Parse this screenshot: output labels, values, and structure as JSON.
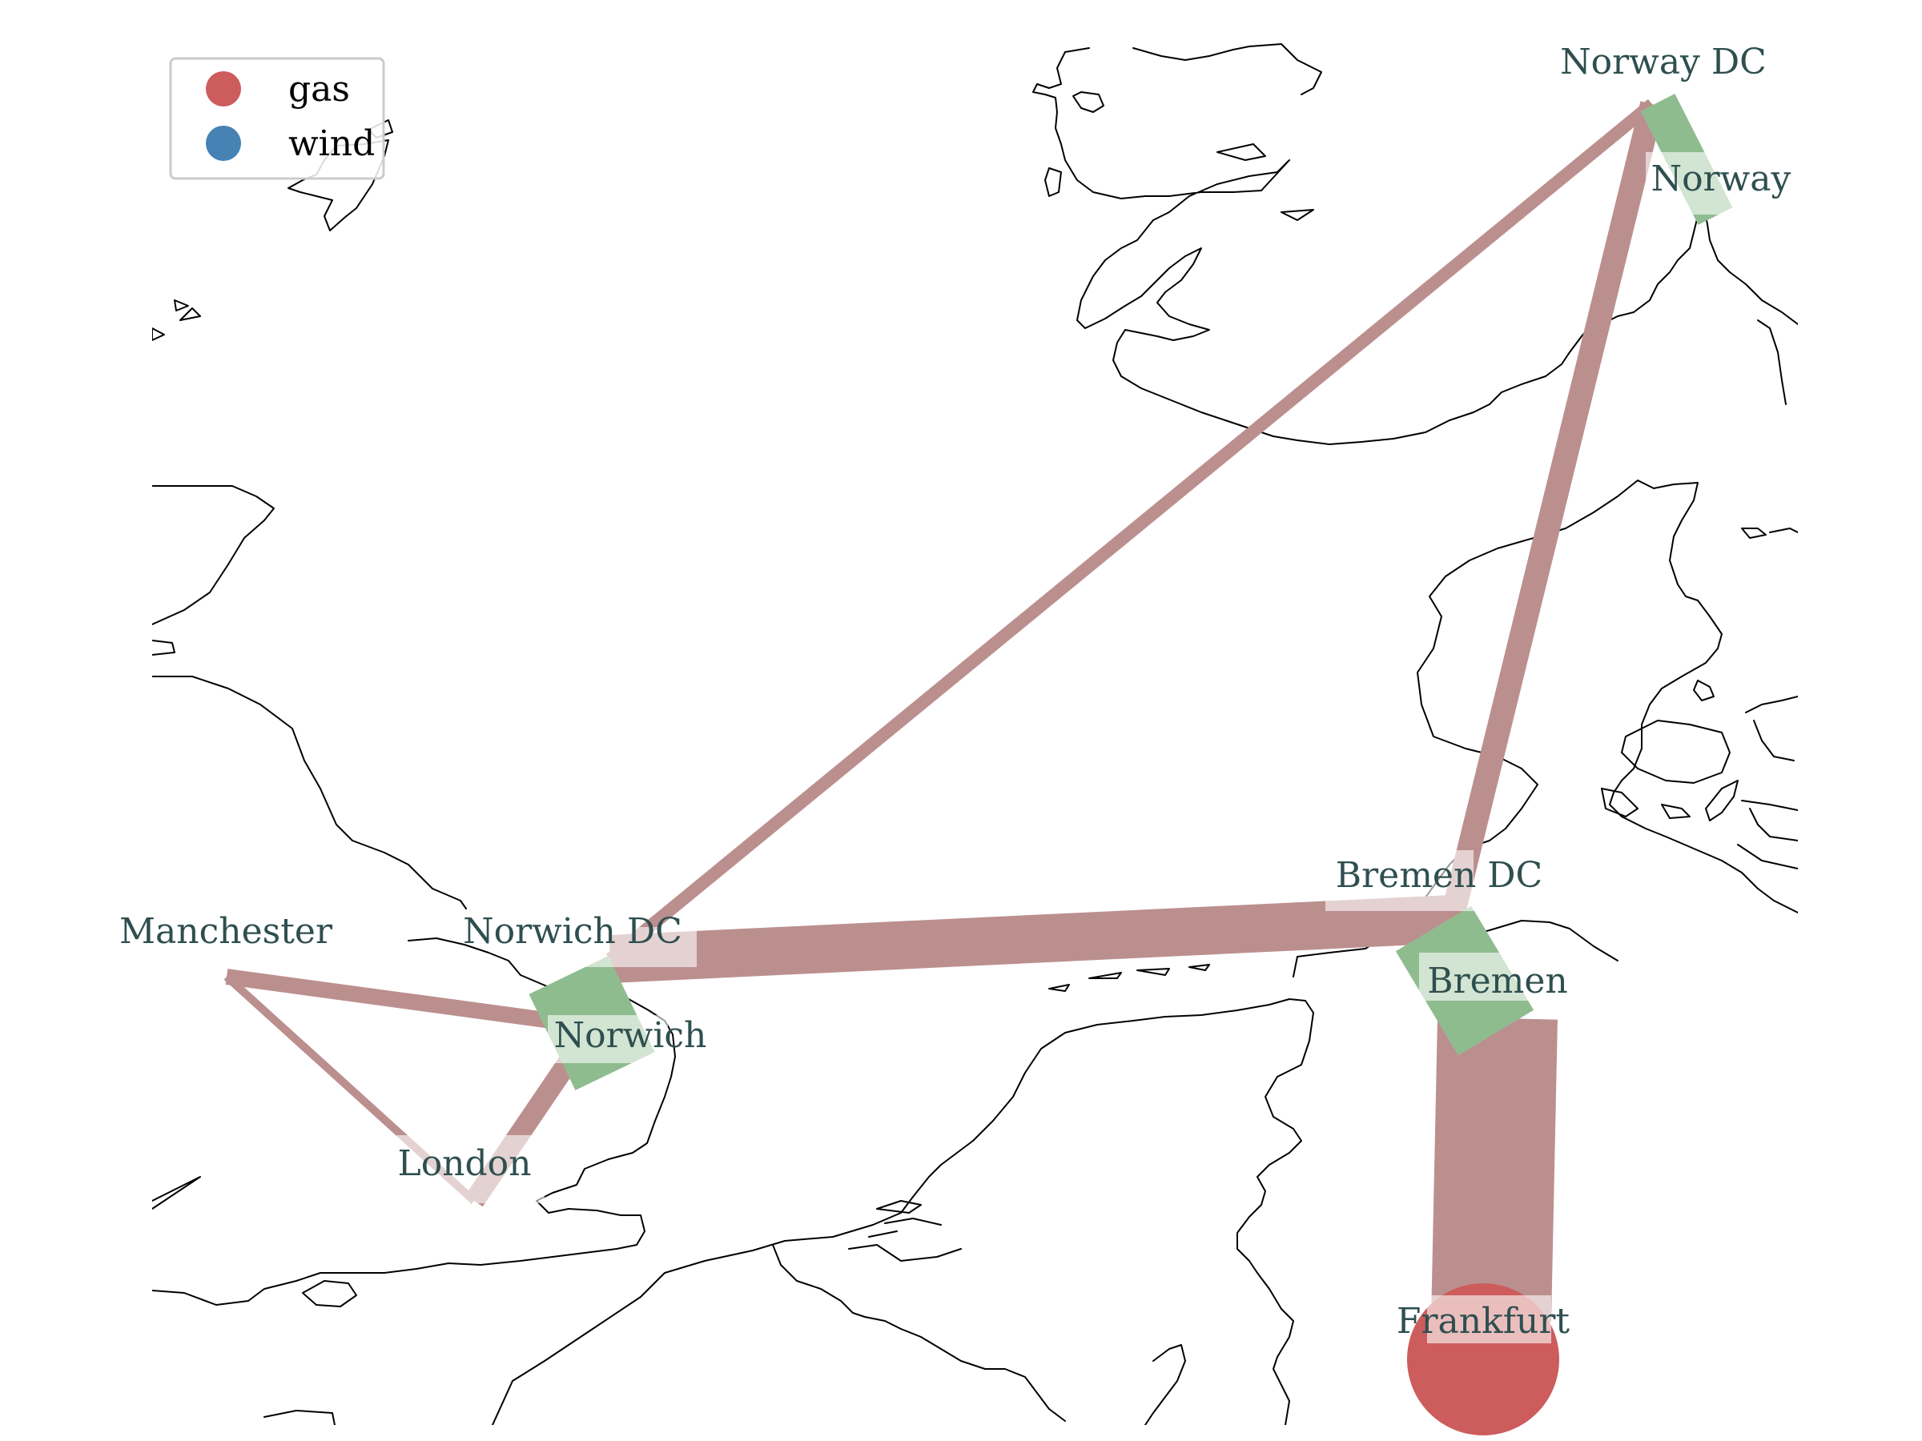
{
  "map": {
    "colors": {
      "branch": "#bc8f8f",
      "link": "#8fbc8f",
      "gas": "#cd5c5c",
      "wind": "#4682b4",
      "label": "#2f4f4f",
      "coastline": "#000000"
    },
    "legend": {
      "items": [
        {
          "label": "gas",
          "color": "#cd5c5c"
        },
        {
          "label": "wind",
          "color": "#4682b4"
        }
      ]
    },
    "buses": [
      {
        "id": "manchester",
        "label": "Manchester",
        "lon": -2.24,
        "lat": 53.48
      },
      {
        "id": "london",
        "label": "London",
        "lon": -0.12,
        "lat": 51.51
      },
      {
        "id": "norwich",
        "label": "Norwich",
        "lon": 1.29,
        "lat": 52.63
      },
      {
        "id": "norwich-dc",
        "label": "Norwich DC",
        "lon": 1.29,
        "lat": 52.63
      },
      {
        "id": "bremen-dc",
        "label": "Bremen DC",
        "lon": 8.8,
        "lat": 53.08
      },
      {
        "id": "bremen",
        "label": "Bremen",
        "lon": 8.8,
        "lat": 53.08
      },
      {
        "id": "norway-dc",
        "label": "Norway DC",
        "lon": 10.75,
        "lat": 59.91
      },
      {
        "id": "norway",
        "label": "Norway",
        "lon": 10.75,
        "lat": 59.91
      },
      {
        "id": "frankfurt",
        "label": "Frankfurt",
        "lon": 8.68,
        "lat": 50.11
      }
    ],
    "generators": [
      {
        "bus": "frankfurt",
        "carrier": "gas"
      }
    ],
    "lines": [
      {
        "from": "manchester",
        "to": "norwich",
        "kind": "line"
      },
      {
        "from": "manchester",
        "to": "london",
        "kind": "line"
      },
      {
        "from": "london",
        "to": "norwich",
        "kind": "line"
      },
      {
        "from": "norwich-dc",
        "to": "bremen-dc",
        "kind": "line"
      },
      {
        "from": "norwich-dc",
        "to": "norway-dc",
        "kind": "line"
      },
      {
        "from": "bremen-dc",
        "to": "norway-dc",
        "kind": "line"
      },
      {
        "from": "bremen",
        "to": "frankfurt",
        "kind": "line"
      },
      {
        "from": "norwich",
        "to": "norwich-dc",
        "kind": "converter"
      },
      {
        "from": "bremen",
        "to": "bremen-dc",
        "kind": "converter"
      },
      {
        "from": "norway",
        "to": "norway-dc",
        "kind": "converter"
      }
    ]
  }
}
